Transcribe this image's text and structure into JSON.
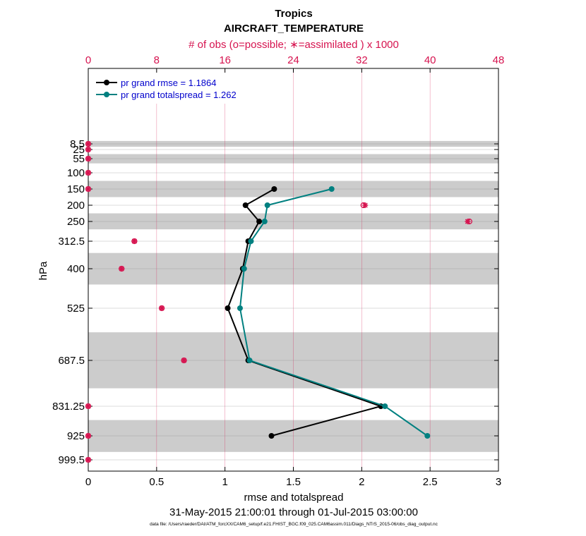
{
  "chart_data": {
    "type": "line",
    "title": "Tropics",
    "subtitle": "AIRCRAFT_TEMPERATURE",
    "top_axis_label": "# of obs (o=possible; ∗=assimilated ) x 1000",
    "xlabel": "rmse and totalspread",
    "ylabel": "hPa",
    "date_range": "31-May-2015 21:00:01 through 01-Jul-2015 03:00:00",
    "footer": "data file: /Users/raeder/DAI/ATM_forcXX/CAM6_setup/f.e21.FHIST_BGC.f09_025.CAM6assim.011/Diags_NTrS_2015-06/obs_diag_output.nc",
    "xlim": [
      0,
      3
    ],
    "x_ticks": [
      "0",
      "0.5",
      "1",
      "1.5",
      "2",
      "2.5",
      "3"
    ],
    "top_xlim": [
      0,
      48
    ],
    "top_ticks": [
      "0",
      "8",
      "16",
      "24",
      "32",
      "40",
      "48"
    ],
    "y_levels": [
      8.5,
      25,
      55,
      100,
      150,
      200,
      250,
      312.5,
      400,
      525,
      687.5,
      831.25,
      925,
      999.5
    ],
    "y_labels": [
      "8.5",
      "25",
      "55",
      "100",
      "150",
      "200",
      "250",
      "312.5",
      "400",
      "525",
      "687.5",
      "831.25",
      "925",
      "999.5"
    ],
    "shaded_bands": [
      [
        0,
        17
      ],
      [
        40,
        70
      ],
      [
        125,
        175
      ],
      [
        225,
        275
      ],
      [
        350,
        450
      ],
      [
        600,
        775
      ],
      [
        875,
        975
      ]
    ],
    "series": [
      {
        "name": "pr grand rmse = 1.1864",
        "color": "#000000",
        "points": [
          {
            "x": 1.36,
            "p": 150
          },
          {
            "x": 1.15,
            "p": 200
          },
          {
            "x": 1.25,
            "p": 250
          },
          {
            "x": 1.17,
            "p": 312.5
          },
          {
            "x": 1.13,
            "p": 400
          },
          {
            "x": 1.02,
            "p": 525
          },
          {
            "x": 1.17,
            "p": 687.5
          },
          {
            "x": 2.14,
            "p": 831.25
          },
          {
            "x": 1.34,
            "p": 925
          }
        ]
      },
      {
        "name": "pr grand totalspread = 1.262",
        "color": "#008080",
        "points": [
          {
            "x": 1.78,
            "p": 150
          },
          {
            "x": 1.31,
            "p": 200
          },
          {
            "x": 1.29,
            "p": 250
          },
          {
            "x": 1.19,
            "p": 312.5
          },
          {
            "x": 1.14,
            "p": 400
          },
          {
            "x": 1.11,
            "p": 525
          },
          {
            "x": 1.18,
            "p": 687.5
          },
          {
            "x": 2.17,
            "p": 831.25
          },
          {
            "x": 2.48,
            "p": 925
          }
        ]
      }
    ],
    "obs_counts": {
      "color": "#d6134f",
      "possible": [
        {
          "n": 0,
          "p": 8.5
        },
        {
          "n": 0,
          "p": 25
        },
        {
          "n": 0,
          "p": 55
        },
        {
          "n": 0,
          "p": 100
        },
        {
          "n": 0,
          "p": 150
        },
        {
          "n": 32.2,
          "p": 200
        },
        {
          "n": 44.6,
          "p": 250
        },
        {
          "n": 5.4,
          "p": 312.5
        },
        {
          "n": 3.9,
          "p": 400
        },
        {
          "n": 8.6,
          "p": 525
        },
        {
          "n": 11.2,
          "p": 687.5
        },
        {
          "n": 0,
          "p": 831.25
        },
        {
          "n": 0,
          "p": 925
        },
        {
          "n": 0,
          "p": 999.5
        }
      ],
      "assimilated": [
        {
          "n": 0,
          "p": 8.5
        },
        {
          "n": 0,
          "p": 25
        },
        {
          "n": 0,
          "p": 55
        },
        {
          "n": 0,
          "p": 100
        },
        {
          "n": 0,
          "p": 150
        },
        {
          "n": 32.4,
          "p": 200
        },
        {
          "n": 44.4,
          "p": 250
        },
        {
          "n": 5.4,
          "p": 312.5
        },
        {
          "n": 3.9,
          "p": 400
        },
        {
          "n": 8.6,
          "p": 525
        },
        {
          "n": 11.2,
          "p": 687.5
        },
        {
          "n": 0,
          "p": 831.25
        },
        {
          "n": 0,
          "p": 925
        },
        {
          "n": 0,
          "p": 999.5
        }
      ]
    },
    "grid": true,
    "legend_position": "top-left"
  }
}
